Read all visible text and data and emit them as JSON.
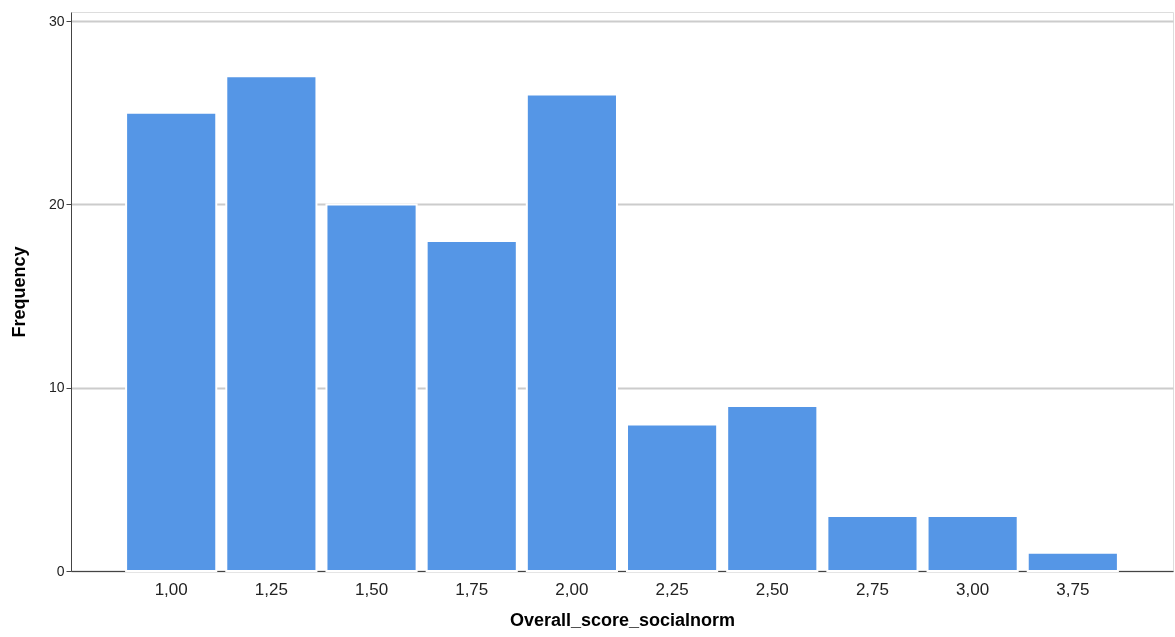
{
  "chart_data": {
    "type": "bar",
    "xlabel": "Overall_score_socialnorm",
    "ylabel": "Frequency",
    "categories": [
      "1,00",
      "1,25",
      "1,50",
      "1,75",
      "2,00",
      "2,25",
      "2,50",
      "2,75",
      "3,00",
      "3,75"
    ],
    "values": [
      25,
      27,
      20,
      18,
      26,
      8,
      9,
      3,
      3,
      1
    ],
    "color": "#5596e6",
    "ylim": [
      0,
      30.5
    ],
    "yticks": [
      0,
      10,
      20,
      30
    ],
    "grid": "y"
  }
}
